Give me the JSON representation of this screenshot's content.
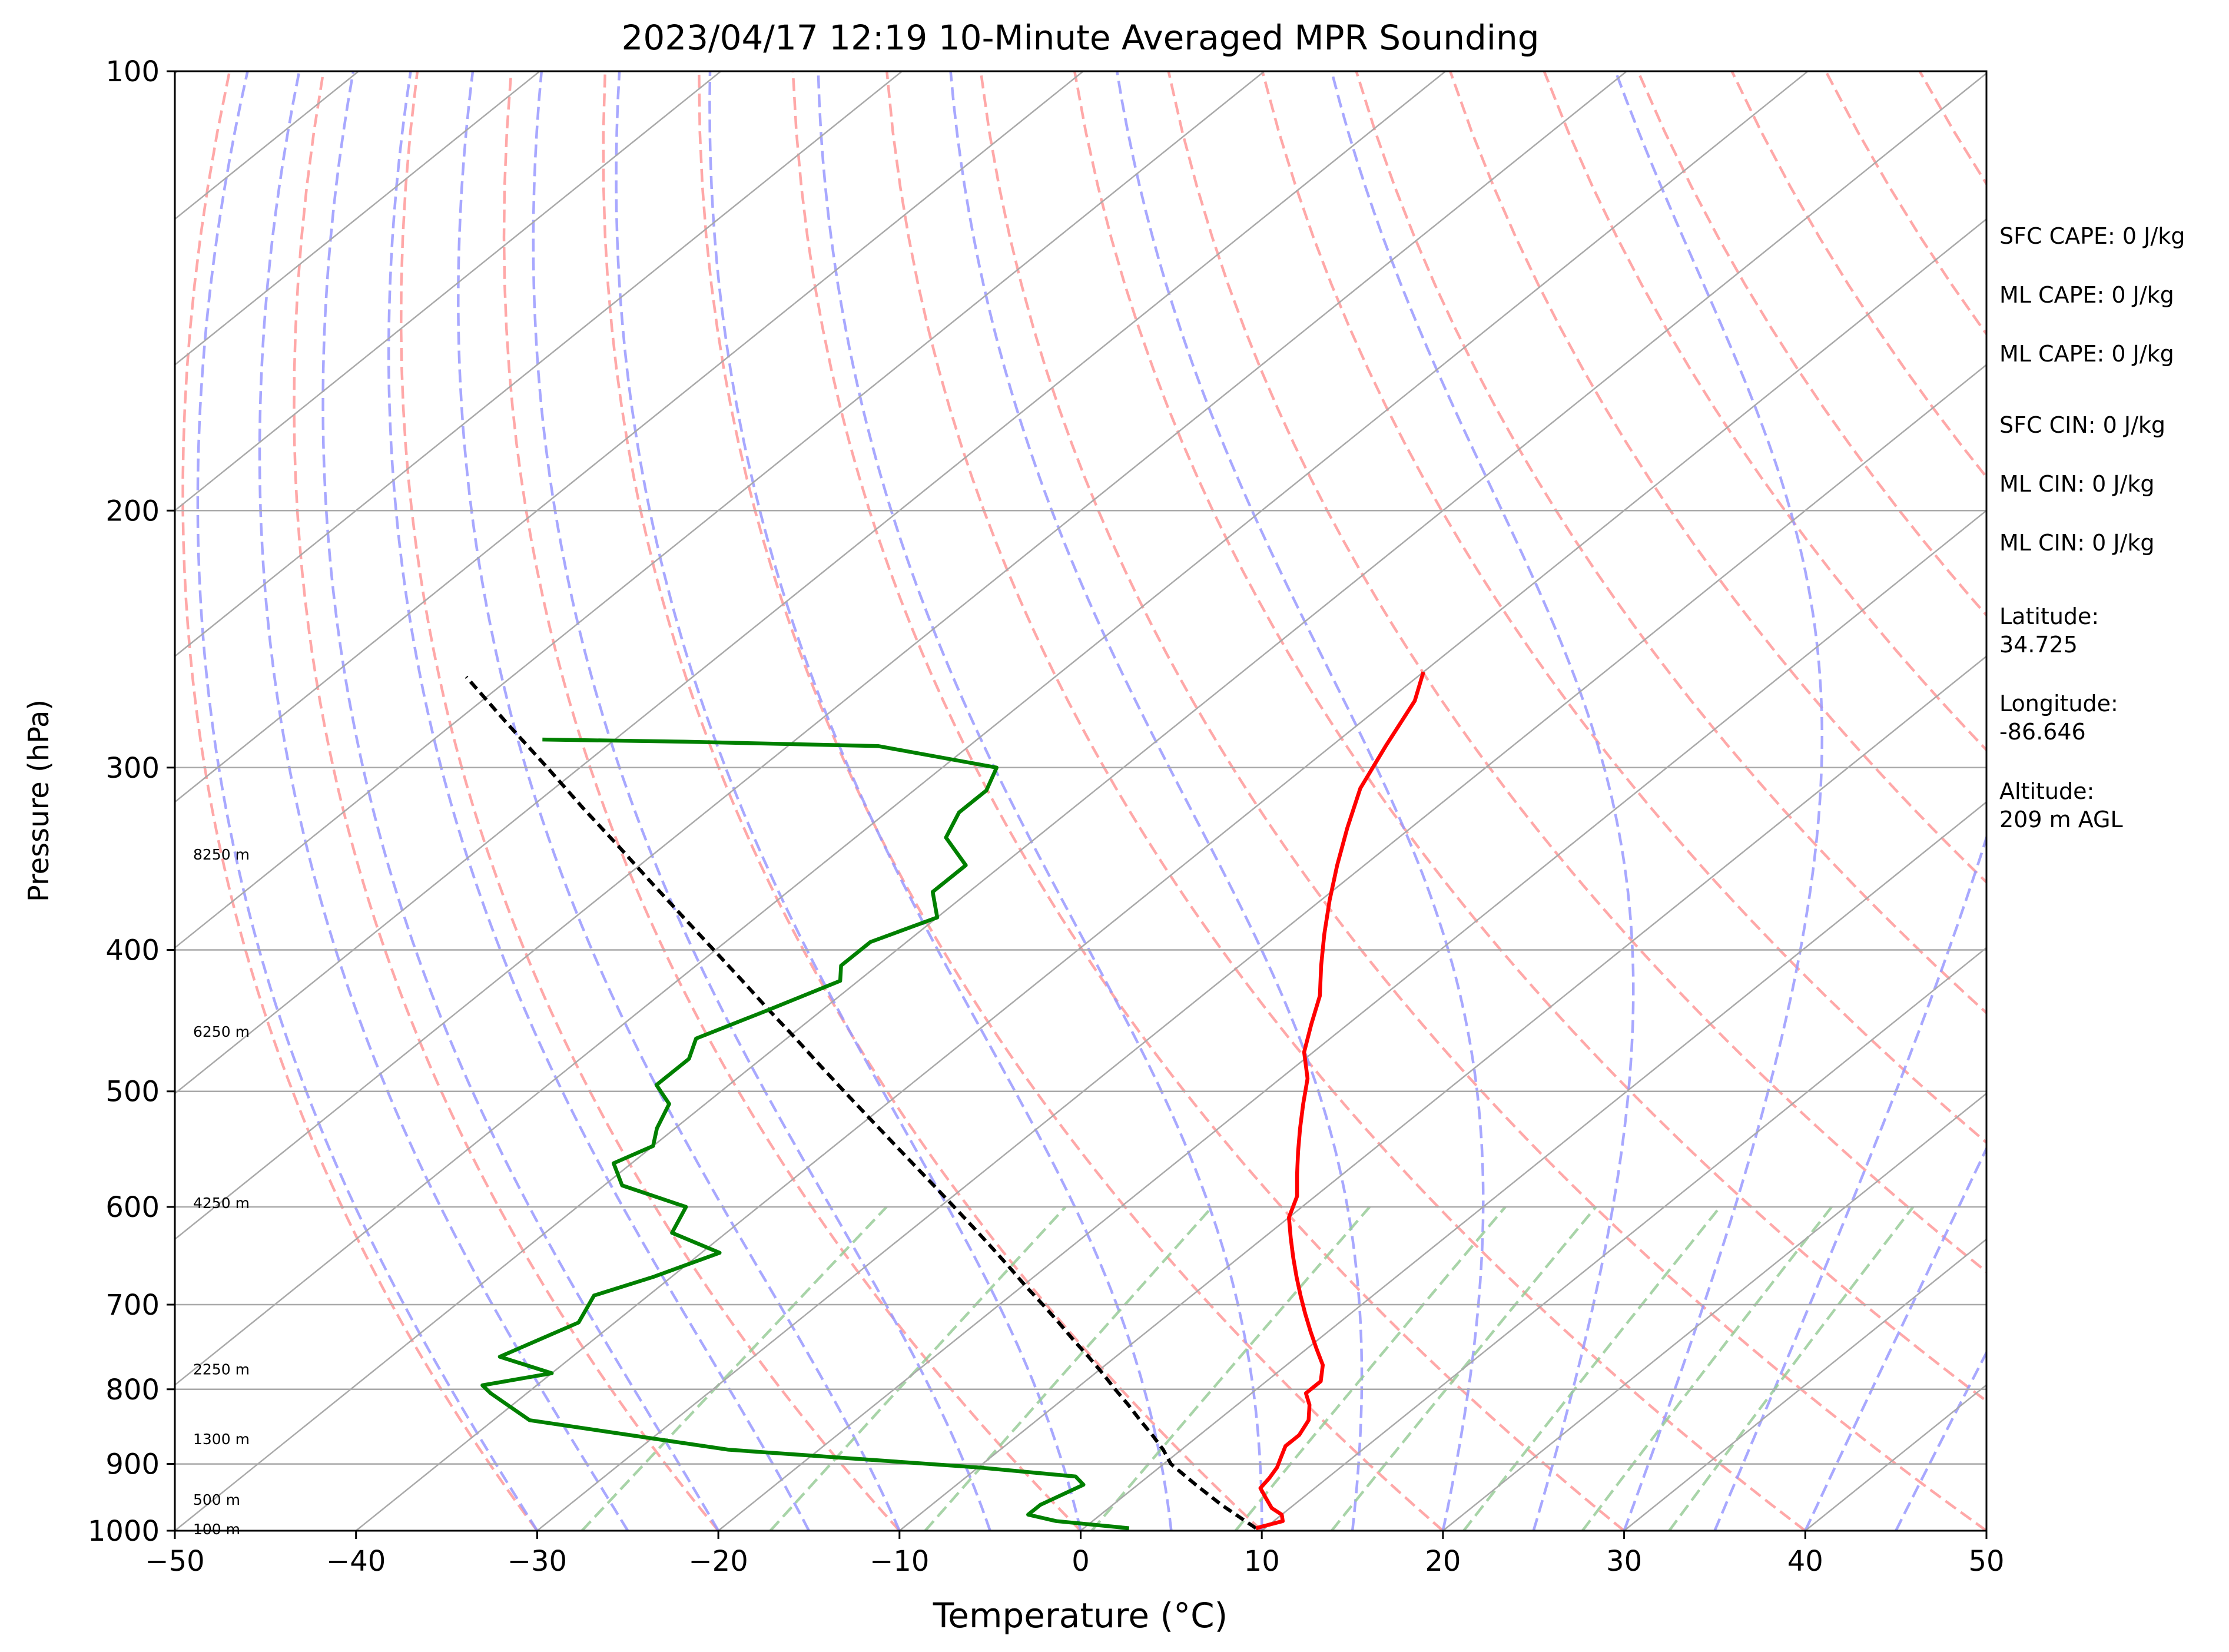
{
  "chart_data": {
    "type": "line",
    "subtype": "skew-t log-p sounding",
    "title": "2023/04/17 12:19 10-Minute Averaged MPR Sounding",
    "xlabel": "Temperature (°C)",
    "ylabel": "Pressure (hPa)",
    "xlim": [
      -50,
      50
    ],
    "ylim": [
      1000,
      100
    ],
    "y_scale": "log",
    "x_ticks": [
      "−50",
      "−40",
      "−30",
      "−20",
      "−10",
      "0",
      "10",
      "20",
      "30",
      "40",
      "50"
    ],
    "x_tick_values": [
      -50,
      -40,
      -30,
      -20,
      -10,
      0,
      10,
      20,
      30,
      40,
      50
    ],
    "y_ticks": [
      "100",
      "200",
      "300",
      "400",
      "500",
      "600",
      "700",
      "800",
      "900",
      "1000"
    ],
    "y_tick_values": [
      100,
      200,
      300,
      400,
      500,
      600,
      700,
      800,
      900,
      1000
    ],
    "grid": true,
    "series": [
      {
        "role": "temperature",
        "color": "#ff0000",
        "pressure": [
          996,
          985,
          975,
          965,
          950,
          935,
          920,
          905,
          890,
          875,
          860,
          840,
          820,
          805,
          790,
          770,
          750,
          730,
          710,
          690,
          670,
          650,
          630,
          610,
          590,
          570,
          550,
          530,
          510,
          490,
          470,
          450,
          430,
          410,
          390,
          370,
          350,
          330,
          310,
          290,
          270,
          258
        ],
        "temp": [
          9.5,
          10.5,
          10.0,
          9.0,
          8.0,
          7.0,
          6.8,
          6.5,
          6.0,
          5.5,
          5.5,
          5.0,
          4.0,
          3.0,
          3.0,
          2.0,
          0.5,
          -1.0,
          -2.5,
          -4.0,
          -5.5,
          -7.0,
          -8.5,
          -10.0,
          -11.0,
          -12.5,
          -14.0,
          -15.5,
          -17.0,
          -18.5,
          -20.5,
          -22.0,
          -23.5,
          -25.5,
          -27.5,
          -29.5,
          -31.5,
          -33.5,
          -35.5,
          -37.0,
          -38.5,
          -40.0
        ]
      },
      {
        "role": "dewpoint",
        "color": "#008000",
        "pressure": [
          996,
          985,
          975,
          960,
          945,
          930,
          918,
          905,
          880,
          840,
          805,
          795,
          780,
          760,
          720,
          690,
          670,
          645,
          625,
          600,
          580,
          560,
          545,
          530,
          510,
          495,
          475,
          460,
          440,
          420,
          410,
          395,
          380,
          365,
          350,
          335,
          322,
          311,
          300,
          290,
          288,
          287
        ],
        "dewpoint": [
          2.5,
          -2.0,
          -4.0,
          -4.0,
          -3.5,
          -3.0,
          -4.0,
          -10.0,
          -25.0,
          -38.0,
          -42.0,
          -43.0,
          -40.0,
          -44.0,
          -42.0,
          -43.0,
          -41.0,
          -39.0,
          -43.0,
          -44.0,
          -49.0,
          -51.0,
          -50.0,
          -51.0,
          -52.0,
          -54.0,
          -54.0,
          -55.0,
          -53.0,
          -51.0,
          -52.0,
          -52.0,
          -50.0,
          -52.0,
          -52.0,
          -55.0,
          -56.0,
          -56.0,
          -57.0,
          -65.0,
          -76.0,
          -84.0
        ]
      },
      {
        "role": "parcel",
        "color": "#000000",
        "style": "dashed",
        "pressure": [
          996,
          960,
          930,
          900,
          880,
          860,
          840,
          820,
          800,
          780,
          760,
          740,
          720,
          700,
          680,
          660,
          640,
          620,
          600,
          580,
          560,
          540,
          520,
          500,
          480,
          460,
          440,
          420,
          400,
          380,
          360,
          340,
          320,
          300,
          280,
          260
        ],
        "temp": [
          9.5,
          6.0,
          3.2,
          0.4,
          -1.0,
          -2.6,
          -4.3,
          -6.0,
          -7.8,
          -9.6,
          -11.5,
          -13.5,
          -15.5,
          -17.6,
          -19.8,
          -22.0,
          -24.3,
          -26.7,
          -29.2,
          -31.8,
          -34.5,
          -37.3,
          -40.2,
          -43.2,
          -46.3,
          -49.5,
          -52.9,
          -56.4,
          -60.1,
          -64.0,
          -68.1,
          -72.4,
          -77.0,
          -81.8,
          -87.0,
          -92.5
        ]
      }
    ],
    "height_labels": [
      {
        "text": "100 m",
        "pressure": 997
      },
      {
        "text": "500 m",
        "pressure": 952
      },
      {
        "text": "1300 m",
        "pressure": 865
      },
      {
        "text": "2250 m",
        "pressure": 775
      },
      {
        "text": "4250 m",
        "pressure": 596
      },
      {
        "text": "6250 m",
        "pressure": 455
      },
      {
        "text": "8250 m",
        "pressure": 344
      }
    ],
    "reference_lines": {
      "isotherms_color": "#a9a9a9",
      "dry_adiabats_color": "#ff9999",
      "moist_adiabats_color": "#9999ff",
      "mixing_ratio_color": "#99cc99"
    },
    "annotations": [
      "SFC CAPE: 0 J/kg",
      "ML CAPE: 0 J/kg",
      "ML CAPE: 0 J/kg",
      "SFC CIN: 0 J/kg",
      "ML CIN: 0 J/kg",
      "ML CIN: 0 J/kg",
      "Latitude:\n34.725",
      "Longitude:\n-86.646",
      "Altitude:\n209 m AGL"
    ]
  },
  "info_panel": {
    "sfc_cape": "SFC CAPE: 0 J/kg",
    "ml_cape_1": "ML CAPE: 0 J/kg",
    "ml_cape_2": "ML CAPE: 0 J/kg",
    "sfc_cin": "SFC CIN: 0 J/kg",
    "ml_cin_1": "ML CIN: 0 J/kg",
    "ml_cin_2": "ML CIN: 0 J/kg",
    "latitude_label": "Latitude:",
    "latitude_value": "34.725",
    "longitude_label": "Longitude:",
    "longitude_value": "-86.646",
    "altitude_label": "Altitude:",
    "altitude_value": "209 m AGL"
  }
}
